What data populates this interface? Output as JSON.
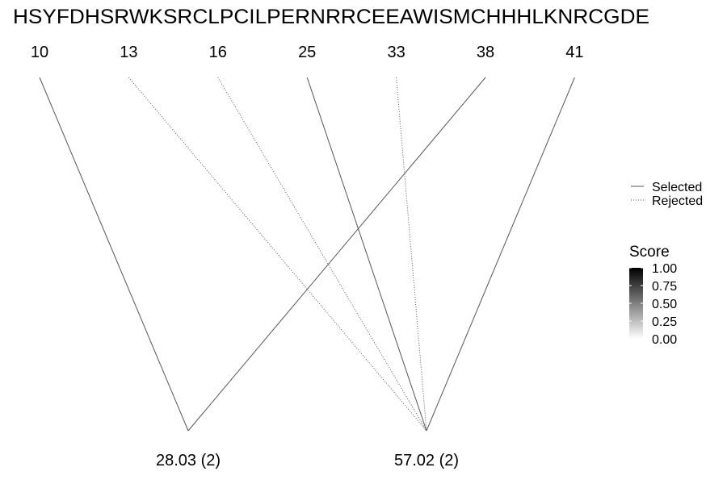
{
  "chart_data": {
    "type": "diagram",
    "sequence": "HSYFDHSRWKSRCLPCILPERNRRCEEAWISMCHHHLKNRCGDE",
    "positions": [
      10,
      13,
      16,
      25,
      33,
      38,
      41
    ],
    "clusters": [
      {
        "label": "28.03 (2)"
      },
      {
        "label": "57.02 (2)"
      }
    ],
    "links": [
      {
        "position": 10,
        "cluster": 0,
        "status": "Selected"
      },
      {
        "position": 38,
        "cluster": 0,
        "status": "Selected"
      },
      {
        "position": 13,
        "cluster": 1,
        "status": "Rejected"
      },
      {
        "position": 16,
        "cluster": 1,
        "status": "Rejected"
      },
      {
        "position": 25,
        "cluster": 1,
        "status": "Selected"
      },
      {
        "position": 33,
        "cluster": 1,
        "status": "Rejected"
      },
      {
        "position": 41,
        "cluster": 1,
        "status": "Selected"
      }
    ],
    "legend": {
      "linetype": [
        {
          "label": "Selected",
          "style": "solid"
        },
        {
          "label": "Rejected",
          "style": "dotted"
        }
      ],
      "score": {
        "title": "Score",
        "ticks": [
          "1.00",
          "0.75",
          "0.50",
          "0.25",
          "0.00"
        ],
        "range": [
          0,
          1
        ],
        "colors": {
          "high": "#000000",
          "low": "#ffffff"
        }
      }
    },
    "line_color": "#555555"
  }
}
